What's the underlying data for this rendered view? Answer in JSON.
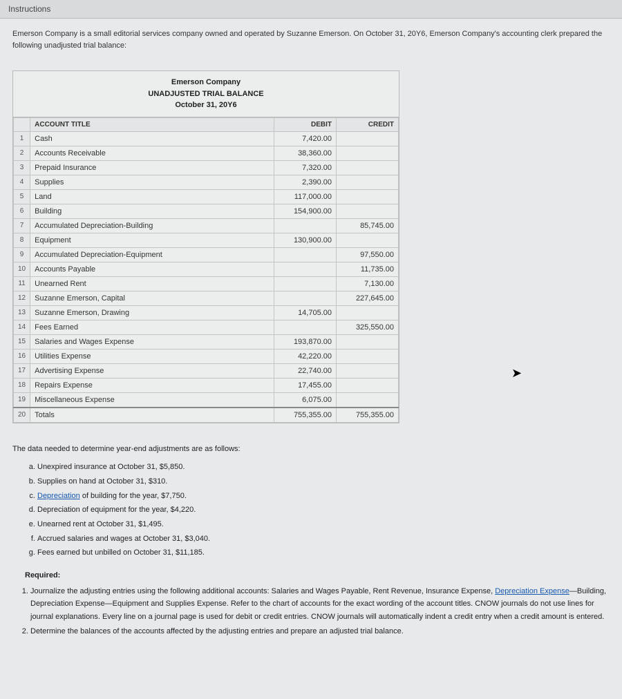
{
  "tab": "Instructions",
  "intro": "Emerson Company is a small editorial services company owned and operated by Suzanne Emerson. On October 31, 20Y6, Emerson Company's accounting clerk prepared the following unadjusted trial balance:",
  "trial_balance": {
    "company": "Emerson Company",
    "title": "UNADJUSTED TRIAL BALANCE",
    "date": "October 31, 20Y6",
    "col_account": "ACCOUNT TITLE",
    "col_debit": "DEBIT",
    "col_credit": "CREDIT",
    "rows": [
      {
        "n": "1",
        "acct": "Cash",
        "debit": "7,420.00",
        "credit": ""
      },
      {
        "n": "2",
        "acct": "Accounts Receivable",
        "debit": "38,360.00",
        "credit": ""
      },
      {
        "n": "3",
        "acct": "Prepaid Insurance",
        "debit": "7,320.00",
        "credit": ""
      },
      {
        "n": "4",
        "acct": "Supplies",
        "debit": "2,390.00",
        "credit": ""
      },
      {
        "n": "5",
        "acct": "Land",
        "debit": "117,000.00",
        "credit": ""
      },
      {
        "n": "6",
        "acct": "Building",
        "debit": "154,900.00",
        "credit": ""
      },
      {
        "n": "7",
        "acct": "Accumulated Depreciation-Building",
        "debit": "",
        "credit": "85,745.00"
      },
      {
        "n": "8",
        "acct": "Equipment",
        "debit": "130,900.00",
        "credit": ""
      },
      {
        "n": "9",
        "acct": "Accumulated Depreciation-Equipment",
        "debit": "",
        "credit": "97,550.00"
      },
      {
        "n": "10",
        "acct": "Accounts Payable",
        "debit": "",
        "credit": "11,735.00"
      },
      {
        "n": "11",
        "acct": "Unearned Rent",
        "debit": "",
        "credit": "7,130.00"
      },
      {
        "n": "12",
        "acct": "Suzanne Emerson, Capital",
        "debit": "",
        "credit": "227,645.00"
      },
      {
        "n": "13",
        "acct": "Suzanne Emerson, Drawing",
        "debit": "14,705.00",
        "credit": ""
      },
      {
        "n": "14",
        "acct": "Fees Earned",
        "debit": "",
        "credit": "325,550.00"
      },
      {
        "n": "15",
        "acct": "Salaries and Wages Expense",
        "debit": "193,870.00",
        "credit": ""
      },
      {
        "n": "16",
        "acct": "Utilities Expense",
        "debit": "42,220.00",
        "credit": ""
      },
      {
        "n": "17",
        "acct": "Advertising Expense",
        "debit": "22,740.00",
        "credit": ""
      },
      {
        "n": "18",
        "acct": "Repairs Expense",
        "debit": "17,455.00",
        "credit": ""
      },
      {
        "n": "19",
        "acct": "Miscellaneous Expense",
        "debit": "6,075.00",
        "credit": ""
      },
      {
        "n": "20",
        "acct": "Totals",
        "debit": "755,355.00",
        "credit": "755,355.00"
      }
    ]
  },
  "adjust_intro": "The data needed to determine year-end adjustments are as follows:",
  "adjust": {
    "a": "Unexpired insurance at October 31, $5,850.",
    "b": "Supplies on hand at October 31, $310.",
    "c_pre": "",
    "c_link": "Depreciation",
    "c_post": " of building for the year, $7,750.",
    "d": "Depreciation of equipment for the year, $4,220.",
    "e": "Unearned rent at October 31, $1,495.",
    "f": "Accrued salaries and wages at October 31, $3,040.",
    "g": "Fees earned but unbilled on October 31, $11,185."
  },
  "required_label": "Required:",
  "req1_pre": "Journalize the adjusting entries using the following additional accounts: Salaries and Wages Payable, Rent Revenue, Insurance Expense, ",
  "req1_link": "Depreciation Expense",
  "req1_post": "—Building, Depreciation Expense—Equipment and Supplies Expense. Refer to the chart of accounts for the exact wording of the account titles. CNOW journals do not use lines for journal explanations. Every line on a journal page is used for debit or credit entries. CNOW journals will automatically indent a credit entry when a credit amount is entered.",
  "req2": "Determine the balances of the accounts affected by the adjusting entries and prepare an adjusted trial balance."
}
